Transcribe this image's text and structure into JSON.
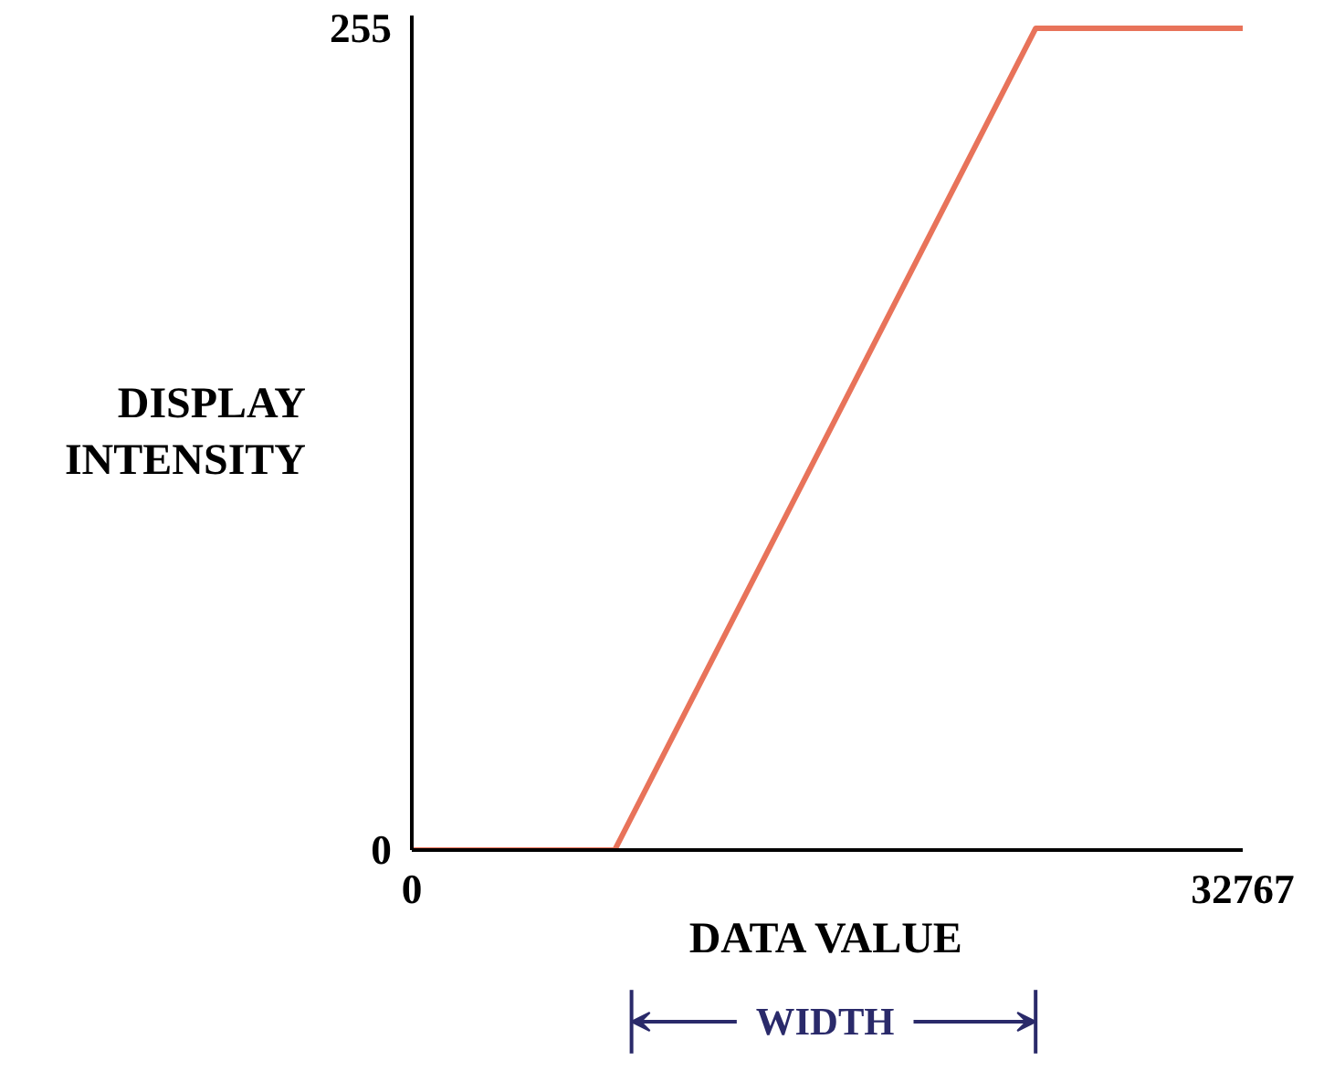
{
  "chart_data": {
    "type": "line",
    "xlabel": "DATA VALUE",
    "ylabel": "DISPLAY\nINTENSITY",
    "x": [
      0,
      8000,
      24600,
      32767
    ],
    "series": [
      {
        "color": "#e8735a",
        "values": [
          0,
          0,
          255,
          255
        ]
      }
    ],
    "xlim": [
      0,
      32767
    ],
    "ylim": [
      0,
      259
    ],
    "xticks": [
      0,
      32767
    ],
    "yticks": [
      0,
      255
    ],
    "annotations": [
      "WIDTH"
    ],
    "grid": false,
    "marker": "none",
    "line_style": "solid"
  }
}
